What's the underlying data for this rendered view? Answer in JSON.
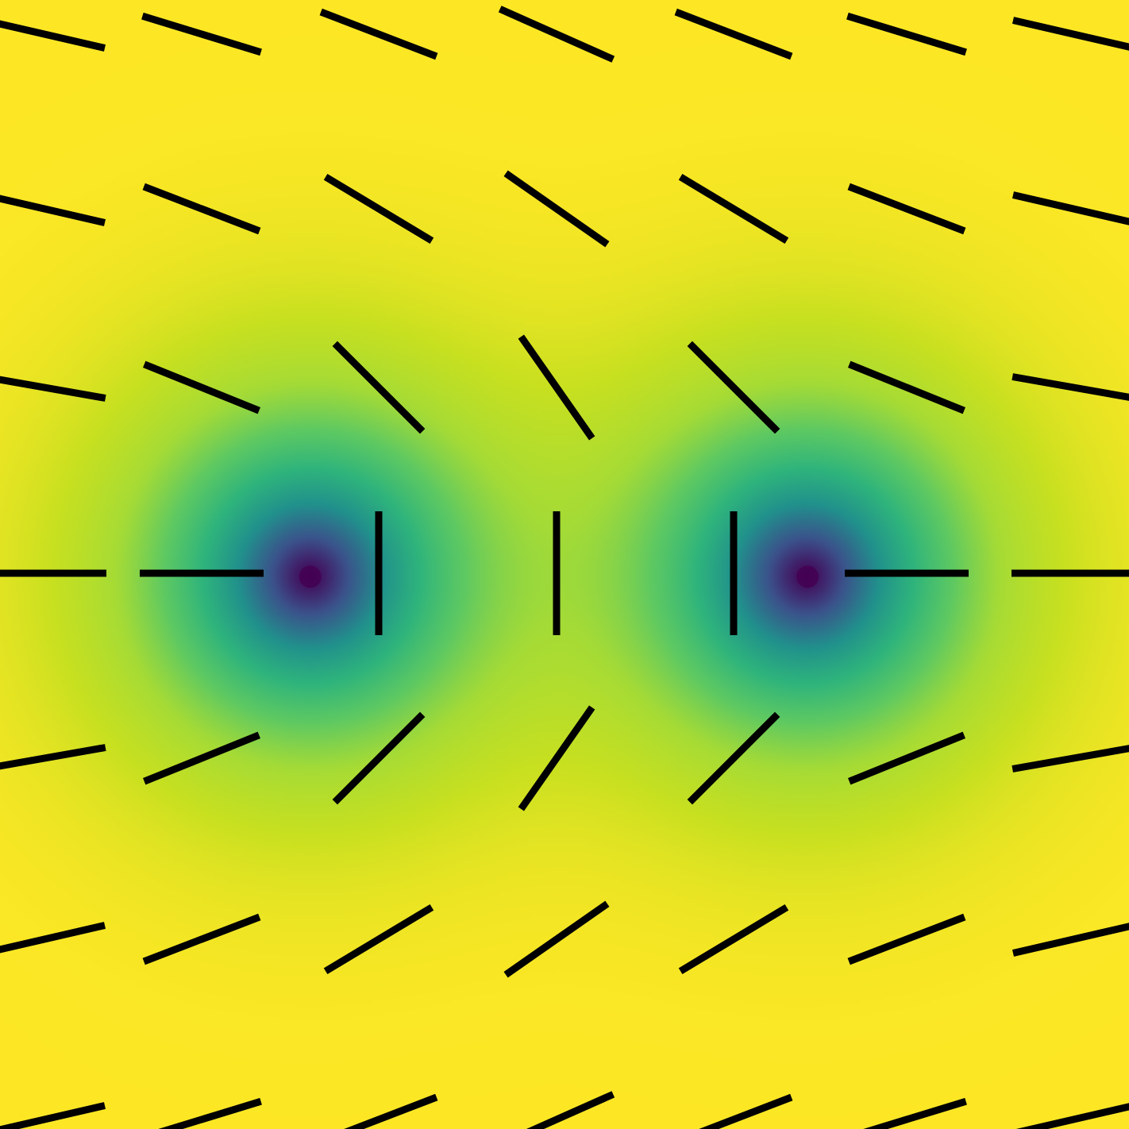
{
  "figure": {
    "colors": {
      "background": "#f6e620",
      "segment": "#000000",
      "colormap": [
        "#440154",
        "#3b528b",
        "#21918c",
        "#2fb47c",
        "#5ec962",
        "#a5db36",
        "#c8e020",
        "#fde725"
      ]
    },
    "defects": [
      {
        "id": "left",
        "charge": "+1/2",
        "fill_color": "#440154"
      },
      {
        "id": "right",
        "charge": "-1/2",
        "fill_color": "#440154"
      }
    ]
  },
  "chart_data": {
    "type": "director-field",
    "grid": {
      "columns": 7,
      "rows": 7
    },
    "x": [
      -3,
      -2,
      -1,
      0,
      1,
      2,
      3
    ],
    "y": [
      3,
      2,
      1,
      0,
      -1,
      -2,
      -3
    ],
    "defects": [
      {
        "x": -1.45,
        "y": 0,
        "charge": 0.5
      },
      {
        "x": 1.45,
        "y": 0,
        "charge": -0.5
      }
    ],
    "orientation_deg": [
      [
        -13,
        -17,
        -21,
        -24,
        -21,
        -17,
        -13
      ],
      [
        -13,
        -21,
        -31,
        -35,
        -31,
        -21,
        -13
      ],
      [
        -10,
        -22,
        -45,
        -55,
        -45,
        -22,
        -10
      ],
      [
        0,
        0,
        90,
        90,
        90,
        0,
        0
      ],
      [
        10,
        22,
        45,
        55,
        45,
        22,
        10
      ],
      [
        13,
        21,
        31,
        35,
        31,
        21,
        13
      ],
      [
        13,
        17,
        21,
        24,
        21,
        17,
        13
      ]
    ],
    "order_parameter": {
      "min": 0,
      "max": 1,
      "core_value": 0
    }
  }
}
